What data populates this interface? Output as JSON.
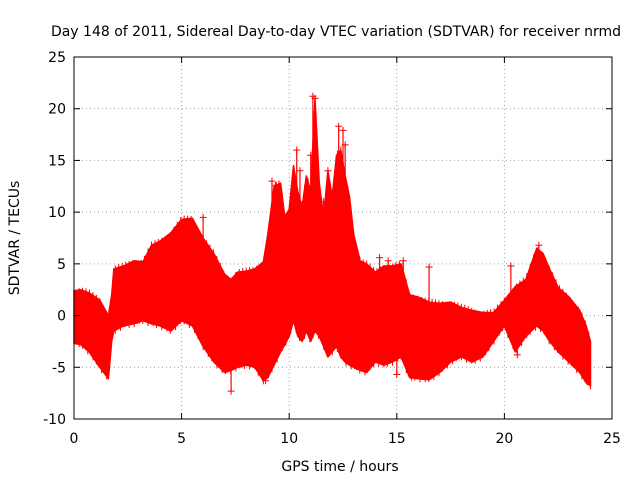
{
  "colors": {
    "background": "#ffffff",
    "data": "#ff0000",
    "grid": "#a0a0a0",
    "frame": "#000000"
  },
  "chart_data": {
    "type": "scatter",
    "title": "Day 148 of 2011, Sidereal Day-to-day VTEC variation (SDTVAR) for receiver nrmd",
    "xlabel": "GPS time / hours",
    "ylabel": "SDTVAR / TECUs",
    "xlim": [
      0,
      25
    ],
    "ylim": [
      -10,
      25
    ],
    "grid": true,
    "marker": "+",
    "x_ticks": [
      0,
      5,
      10,
      15,
      20,
      25
    ],
    "x_tick_labels": [
      "0",
      "5",
      "10",
      "15",
      "20",
      "25"
    ],
    "y_ticks": [
      -10,
      -5,
      0,
      5,
      10,
      15,
      20,
      25
    ],
    "y_tick_labels": [
      "-10",
      "-5",
      "0",
      "5",
      "10",
      "15",
      "20",
      "25"
    ],
    "envelope": {
      "x": [
        0,
        0.3,
        0.7,
        1.2,
        1.6,
        1.75,
        1.85,
        2.3,
        2.8,
        3.2,
        3.6,
        4.0,
        4.5,
        5.0,
        5.5,
        6.0,
        6.5,
        7.0,
        7.3,
        7.6,
        8.0,
        8.4,
        8.8,
        9.0,
        9.3,
        9.6,
        9.8,
        10.0,
        10.2,
        10.4,
        10.6,
        10.8,
        11.0,
        11.2,
        11.4,
        11.6,
        11.8,
        12.0,
        12.2,
        12.4,
        12.6,
        12.8,
        13.0,
        13.3,
        13.6,
        14.0,
        14.4,
        14.8,
        15.2,
        15.6,
        16.0,
        16.5,
        17.0,
        17.5,
        18.0,
        18.5,
        19.0,
        19.5,
        20.0,
        20.5,
        21.0,
        21.5,
        21.8,
        22.1,
        22.5,
        23.0,
        23.5,
        23.8,
        24.0
      ],
      "upper": [
        2.4,
        2.5,
        2.2,
        1.5,
        0.0,
        2.0,
        4.5,
        4.8,
        5.3,
        5.2,
        6.8,
        7.2,
        8.0,
        9.3,
        9.4,
        7.5,
        6.0,
        4.0,
        3.5,
        4.2,
        4.3,
        4.5,
        5.2,
        7.8,
        12.5,
        12.8,
        9.5,
        10.3,
        14.5,
        12.0,
        10.5,
        13.5,
        12.0,
        21.0,
        12.8,
        9.5,
        14.0,
        11.5,
        15.5,
        16.0,
        13.5,
        11.5,
        7.8,
        5.3,
        5.0,
        4.2,
        4.8,
        4.8,
        5.0,
        2.0,
        1.8,
        1.3,
        1.2,
        1.3,
        0.8,
        0.5,
        0.3,
        0.3,
        1.5,
        2.8,
        3.5,
        6.5,
        6.0,
        4.5,
        2.7,
        1.8,
        0.5,
        -1.0,
        -2.5
      ],
      "lower": [
        -2.7,
        -2.8,
        -3.5,
        -5.0,
        -6.1,
        -2.5,
        -1.5,
        -1.0,
        -0.8,
        -0.5,
        -0.8,
        -1.0,
        -1.5,
        -0.5,
        -1.0,
        -3.0,
        -4.5,
        -5.5,
        -5.3,
        -5.0,
        -4.8,
        -5.0,
        -6.3,
        -6.0,
        -4.8,
        -3.5,
        -2.8,
        -2.0,
        -0.5,
        -2.0,
        -2.5,
        -1.5,
        -2.5,
        -1.5,
        -2.0,
        -3.0,
        -4.0,
        -3.5,
        -3.0,
        -4.0,
        -4.5,
        -4.8,
        -5.0,
        -5.3,
        -5.5,
        -4.5,
        -4.8,
        -4.5,
        -4.0,
        -6.0,
        -6.1,
        -6.2,
        -5.5,
        -4.5,
        -4.0,
        -4.5,
        -4.0,
        -2.5,
        -1.0,
        -3.5,
        -2.0,
        -1.0,
        -1.5,
        -2.5,
        -3.5,
        -4.5,
        -5.5,
        -6.5,
        -6.8
      ]
    },
    "spikes": [
      {
        "x": 9.2,
        "y": 13.0
      },
      {
        "x": 9.4,
        "y": 12.6
      },
      {
        "x": 10.35,
        "y": 16.0
      },
      {
        "x": 10.5,
        "y": 14.0
      },
      {
        "x": 11.0,
        "y": 15.5
      },
      {
        "x": 11.1,
        "y": 21.2
      },
      {
        "x": 11.2,
        "y": 21.0
      },
      {
        "x": 11.6,
        "y": 11.0
      },
      {
        "x": 11.8,
        "y": 14.0
      },
      {
        "x": 12.3,
        "y": 18.3
      },
      {
        "x": 12.5,
        "y": 17.9
      },
      {
        "x": 12.6,
        "y": 16.5
      },
      {
        "x": 14.2,
        "y": 5.6
      },
      {
        "x": 14.6,
        "y": 5.3
      },
      {
        "x": 15.3,
        "y": 5.3
      },
      {
        "x": 16.5,
        "y": 4.7
      },
      {
        "x": 16.5,
        "y": -0.3
      },
      {
        "x": 20.3,
        "y": 4.8
      },
      {
        "x": 21.6,
        "y": 6.8
      },
      {
        "x": 7.3,
        "y": -7.3
      },
      {
        "x": 15.0,
        "y": -5.7
      },
      {
        "x": 20.6,
        "y": -3.8
      },
      {
        "x": 6.0,
        "y": 9.5
      },
      {
        "x": 8.9,
        "y": -6.3
      }
    ]
  }
}
